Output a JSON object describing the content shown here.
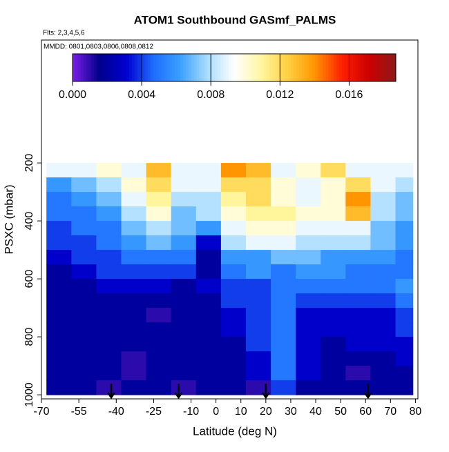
{
  "chart_data": {
    "type": "heatmap",
    "title": "ATOM1 Southbound GASmf_PALMS",
    "subtitle": "Flts: 2,3,4,5,6",
    "annotation": "MMDD: 0801,0803,0806,0808,0812",
    "xlabel": "Latitude (deg N)",
    "ylabel": "PSXC (mbar)",
    "xlim": [
      -70,
      81
    ],
    "xticks": [
      -70,
      -55,
      -40,
      -25,
      -10,
      0,
      10,
      20,
      30,
      40,
      50,
      60,
      70,
      80
    ],
    "ylim": [
      1014,
      -224
    ],
    "yticks": [
      200,
      400,
      600,
      800,
      1000
    ],
    "x_edges": [
      -68,
      -58,
      -48,
      -38,
      -28,
      -18,
      -8,
      2,
      12,
      22,
      32,
      42,
      52,
      62,
      72,
      79
    ],
    "y_edges": [
      200,
      250,
      300,
      350,
      400,
      450,
      500,
      550,
      600,
      650,
      700,
      750,
      800,
      850,
      900,
      950,
      1000
    ],
    "values": [
      [
        0.009,
        0.009,
        0.01,
        0.009,
        0.013,
        0.009,
        0.009,
        0.014,
        0.013,
        0.009,
        0.01,
        0.012,
        0.009,
        0.009,
        0.009
      ],
      [
        0.006,
        0.007,
        0.008,
        0.01,
        0.012,
        0.009,
        0.009,
        0.012,
        0.012,
        0.01,
        0.009,
        0.01,
        0.012,
        0.009,
        0.008
      ],
      [
        0.005,
        0.006,
        0.007,
        0.009,
        0.011,
        0.008,
        0.008,
        0.011,
        0.012,
        0.01,
        0.009,
        0.01,
        0.014,
        0.008,
        0.007
      ],
      [
        0.005,
        0.005,
        0.006,
        0.008,
        0.01,
        0.007,
        0.008,
        0.01,
        0.011,
        0.011,
        0.01,
        0.01,
        0.013,
        0.008,
        0.007
      ],
      [
        0.004,
        0.005,
        0.005,
        0.007,
        0.008,
        0.007,
        0.006,
        0.009,
        0.01,
        0.01,
        0.009,
        0.009,
        0.009,
        0.007,
        0.006
      ],
      [
        0.004,
        0.004,
        0.005,
        0.006,
        0.007,
        0.006,
        0.003,
        0.008,
        0.009,
        0.009,
        0.008,
        0.008,
        0.008,
        0.007,
        0.006
      ],
      [
        0.003,
        0.004,
        0.004,
        0.005,
        0.005,
        0.005,
        0.002,
        0.006,
        0.006,
        0.007,
        0.007,
        0.006,
        0.006,
        0.006,
        0.005
      ],
      [
        0.002,
        0.003,
        0.004,
        0.004,
        0.004,
        0.004,
        0.002,
        0.005,
        0.006,
        0.005,
        0.006,
        0.006,
        0.005,
        0.005,
        0.005
      ],
      [
        0.002,
        0.002,
        0.003,
        0.003,
        0.003,
        0.002,
        0.003,
        0.004,
        0.004,
        0.005,
        0.005,
        0.005,
        0.005,
        0.005,
        0.006
      ],
      [
        0.002,
        0.002,
        0.002,
        0.002,
        0.002,
        0.002,
        0.002,
        0.004,
        0.004,
        0.005,
        0.004,
        0.004,
        0.004,
        0.004,
        0.005
      ],
      [
        0.002,
        0.002,
        0.002,
        0.002,
        0.001,
        0.002,
        0.002,
        0.003,
        0.004,
        0.005,
        0.003,
        0.003,
        0.003,
        0.003,
        0.004
      ],
      [
        0.002,
        0.002,
        0.002,
        0.002,
        0.002,
        0.002,
        0.002,
        0.003,
        0.004,
        0.005,
        0.003,
        0.003,
        0.003,
        0.003,
        0.004
      ],
      [
        0.002,
        0.002,
        0.002,
        0.002,
        0.002,
        0.002,
        0.002,
        0.002,
        0.004,
        0.005,
        0.003,
        0.002,
        0.003,
        0.003,
        0.003
      ],
      [
        0.002,
        0.002,
        0.002,
        0.001,
        0.002,
        0.002,
        0.002,
        0.002,
        0.003,
        0.005,
        0.003,
        0.002,
        0.002,
        0.002,
        0.003
      ],
      [
        0.002,
        0.002,
        0.002,
        0.001,
        0.002,
        0.002,
        0.002,
        0.002,
        0.003,
        0.005,
        0.003,
        0.002,
        0.001,
        0.002,
        0.002
      ],
      [
        0.002,
        0.002,
        0.001,
        0.002,
        0.002,
        0.001,
        0.002,
        0.002,
        0.001,
        0.004,
        0.002,
        0.002,
        0.002,
        0.002,
        0.002
      ]
    ],
    "arrows_x": [
      -42,
      -15,
      20,
      61
    ],
    "clim": [
      0,
      0.0187
    ],
    "cticks": [
      {
        "value": 0,
        "label": "0.000"
      },
      {
        "value": 0.004,
        "label": "0.004"
      },
      {
        "value": 0.008,
        "label": "0.008"
      },
      {
        "value": 0.012,
        "label": "0.012"
      },
      {
        "value": 0.016,
        "label": "0.016"
      }
    ],
    "colorscale": [
      "#7a1fe8",
      "#00008b",
      "#0000d0",
      "#1e6cff",
      "#3aa0ff",
      "#a8dcff",
      "#ffffff",
      "#fff7a0",
      "#ffd040",
      "#ff9400",
      "#ff2000",
      "#cc0000",
      "#8b1a1a"
    ]
  }
}
